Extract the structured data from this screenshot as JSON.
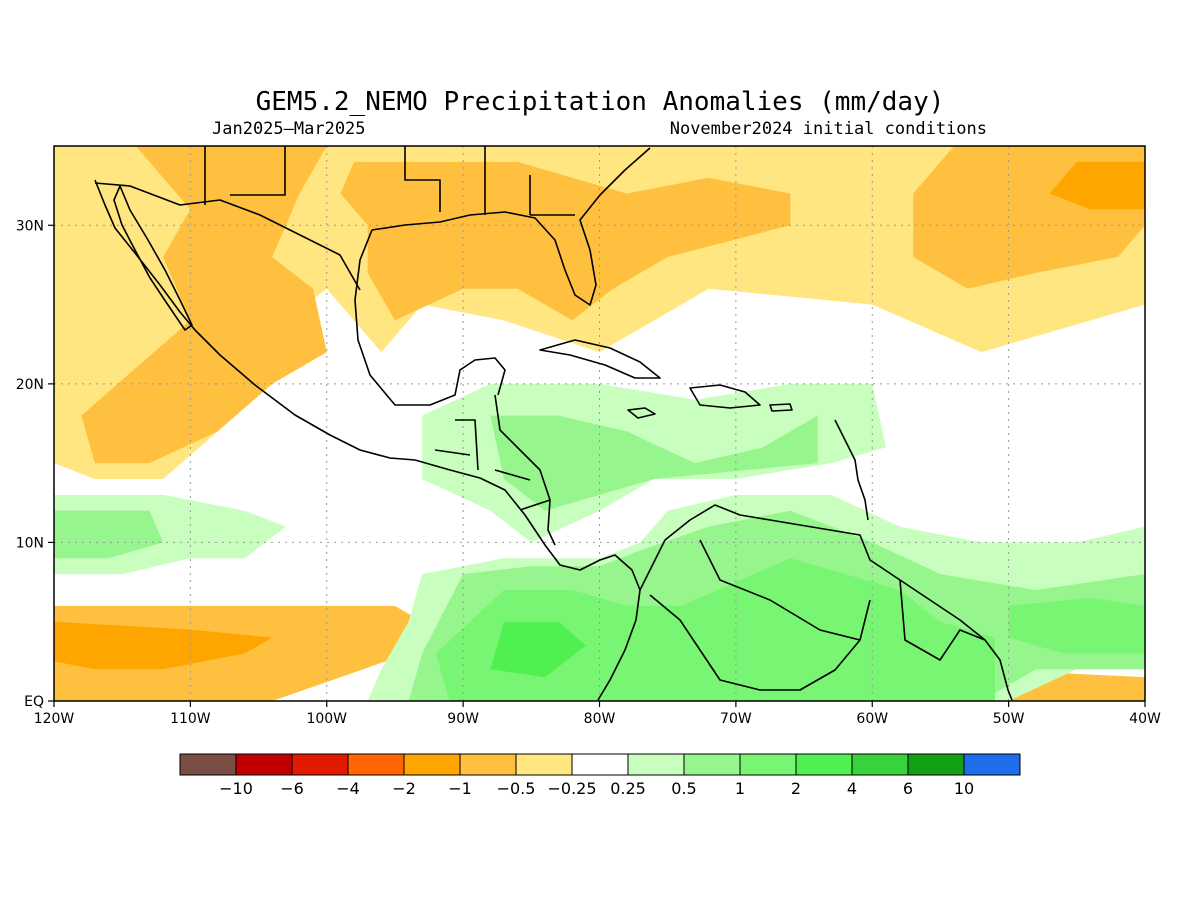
{
  "title": "GEM5.2_NEMO Precipitation Anomalies (mm/day)",
  "subtitle_left": "Jan2025–Mar2025",
  "subtitle_right": "November2024 initial conditions",
  "chart_data": {
    "type": "heatmap",
    "projection": "lat-lon",
    "lon_range": [
      -120,
      -40
    ],
    "lat_range": [
      0,
      35
    ],
    "x_ticks": [
      {
        "lon": -120,
        "label": "120W"
      },
      {
        "lon": -110,
        "label": "110W"
      },
      {
        "lon": -100,
        "label": "100W"
      },
      {
        "lon": -90,
        "label": "90W"
      },
      {
        "lon": -80,
        "label": "80W"
      },
      {
        "lon": -70,
        "label": "70W"
      },
      {
        "lon": -60,
        "label": "60W"
      },
      {
        "lon": -50,
        "label": "50W"
      },
      {
        "lon": -40,
        "label": "40W"
      }
    ],
    "y_ticks": [
      {
        "lat": 0,
        "label": "EQ"
      },
      {
        "lat": 10,
        "label": "10N"
      },
      {
        "lat": 20,
        "label": "20N"
      },
      {
        "lat": 30,
        "label": "30N"
      }
    ],
    "grid": true,
    "colorbar": {
      "colors": [
        "#7a4d45",
        "#c00000",
        "#e11a00",
        "#ff6600",
        "#ffa500",
        "#ffc040",
        "#ffe680",
        "#ffffff",
        "#c8ffbe",
        "#96f58c",
        "#78f573",
        "#50f050",
        "#37d23c",
        "#14a014",
        "#1e6eeb"
      ],
      "labels": [
        "−10",
        "−6",
        "−4",
        "−2",
        "−1",
        "−0.5",
        "−0.25",
        "0.25",
        "0.5",
        "1",
        "2",
        "4",
        "6",
        "10"
      ]
    },
    "regions": [
      {
        "bin": 6,
        "coords": [
          [
            -120,
            35
          ],
          [
            -40,
            35
          ],
          [
            -40,
            25
          ],
          [
            -52,
            22
          ],
          [
            -60,
            25
          ],
          [
            -72,
            26
          ],
          [
            -80,
            22
          ],
          [
            -87,
            24
          ],
          [
            -93,
            25
          ],
          [
            -96,
            22
          ],
          [
            -100,
            26
          ],
          [
            -103,
            24
          ],
          [
            -105,
            21
          ],
          [
            -108,
            17
          ],
          [
            -112,
            14
          ],
          [
            -117,
            14
          ],
          [
            -120,
            15
          ]
        ]
      },
      {
        "bin": 5,
        "coords": [
          [
            -114,
            35
          ],
          [
            -100,
            35
          ],
          [
            -102,
            32
          ],
          [
            -104,
            28
          ],
          [
            -101,
            26
          ],
          [
            -100,
            22
          ],
          [
            -104,
            20
          ],
          [
            -108,
            17
          ],
          [
            -113,
            15
          ],
          [
            -117,
            15
          ],
          [
            -118,
            18
          ],
          [
            -114,
            21
          ],
          [
            -110,
            24
          ],
          [
            -112,
            28
          ],
          [
            -110,
            31
          ],
          [
            -112,
            33
          ]
        ]
      },
      {
        "bin": 5,
        "coords": [
          [
            -98,
            34
          ],
          [
            -86,
            34
          ],
          [
            -78,
            32
          ],
          [
            -72,
            33
          ],
          [
            -66,
            32
          ],
          [
            -66,
            30
          ],
          [
            -75,
            28
          ],
          [
            -79,
            26
          ],
          [
            -82,
            24
          ],
          [
            -86,
            26
          ],
          [
            -90,
            26
          ],
          [
            -95,
            24
          ],
          [
            -97,
            27
          ],
          [
            -97,
            30
          ],
          [
            -99,
            32
          ]
        ]
      },
      {
        "bin": 5,
        "coords": [
          [
            -54,
            35
          ],
          [
            -40,
            35
          ],
          [
            -40,
            30
          ],
          [
            -42,
            28
          ],
          [
            -48,
            27
          ],
          [
            -53,
            26
          ],
          [
            -57,
            28
          ],
          [
            -57,
            32
          ]
        ]
      },
      {
        "bin": 4,
        "coords": [
          [
            -45,
            34
          ],
          [
            -40,
            34
          ],
          [
            -40,
            31
          ],
          [
            -44,
            31
          ],
          [
            -47,
            32
          ]
        ]
      },
      {
        "bin": 5,
        "coords": [
          [
            -120,
            6
          ],
          [
            -95,
            6
          ],
          [
            -93,
            5
          ],
          [
            -94,
            3
          ],
          [
            -99,
            1.5
          ],
          [
            -104,
            0
          ],
          [
            -120,
            0
          ]
        ]
      },
      {
        "bin": 4,
        "coords": [
          [
            -120,
            5
          ],
          [
            -110,
            4.5
          ],
          [
            -104,
            4
          ],
          [
            -106,
            3
          ],
          [
            -112,
            2
          ],
          [
            -117,
            2
          ],
          [
            -120,
            2.5
          ]
        ]
      },
      {
        "bin": 5,
        "coords": [
          [
            -52,
            2
          ],
          [
            -40,
            1.5
          ],
          [
            -40,
            0
          ],
          [
            -52,
            0
          ]
        ]
      },
      {
        "bin": 8,
        "coords": [
          [
            -120,
            13
          ],
          [
            -112,
            13
          ],
          [
            -106,
            12
          ],
          [
            -103,
            11
          ],
          [
            -106,
            9
          ],
          [
            -110,
            9
          ],
          [
            -115,
            8
          ],
          [
            -120,
            8
          ]
        ]
      },
      {
        "bin": 9,
        "coords": [
          [
            -120,
            12
          ],
          [
            -113,
            12
          ],
          [
            -112,
            10
          ],
          [
            -116,
            9
          ],
          [
            -120,
            9
          ]
        ]
      },
      {
        "bin": 8,
        "coords": [
          [
            -93,
            8
          ],
          [
            -87,
            9
          ],
          [
            -80,
            9
          ],
          [
            -77,
            10
          ],
          [
            -75,
            12
          ],
          [
            -70,
            13
          ],
          [
            -63,
            13
          ],
          [
            -58,
            11
          ],
          [
            -52,
            10
          ],
          [
            -45,
            10
          ],
          [
            -40,
            11
          ],
          [
            -40,
            2
          ],
          [
            -45,
            2
          ],
          [
            -50,
            0
          ],
          [
            -97,
            0
          ],
          [
            -96,
            2
          ],
          [
            -94,
            5
          ]
        ]
      },
      {
        "bin": 8,
        "coords": [
          [
            -93,
            18
          ],
          [
            -88,
            20
          ],
          [
            -80,
            20
          ],
          [
            -73,
            19
          ],
          [
            -66,
            20
          ],
          [
            -60,
            20
          ],
          [
            -59,
            16
          ],
          [
            -63,
            15
          ],
          [
            -70,
            14
          ],
          [
            -76,
            14
          ],
          [
            -80,
            12
          ],
          [
            -85,
            10
          ],
          [
            -88,
            12
          ],
          [
            -93,
            14
          ]
        ]
      },
      {
        "bin": 9,
        "coords": [
          [
            -90,
            8
          ],
          [
            -85,
            8.5
          ],
          [
            -80,
            8.5
          ],
          [
            -77,
            9.5
          ],
          [
            -72,
            11
          ],
          [
            -66,
            12
          ],
          [
            -60,
            10
          ],
          [
            -55,
            8
          ],
          [
            -48,
            7
          ],
          [
            -40,
            8
          ],
          [
            -40,
            2
          ],
          [
            -48,
            2
          ],
          [
            -52,
            0
          ],
          [
            -94,
            0
          ],
          [
            -93,
            3
          ]
        ]
      },
      {
        "bin": 9,
        "coords": [
          [
            -88,
            18
          ],
          [
            -83,
            18
          ],
          [
            -78,
            17
          ],
          [
            -73,
            15
          ],
          [
            -68,
            16
          ],
          [
            -64,
            18
          ],
          [
            -64,
            15
          ],
          [
            -70,
            14.5
          ],
          [
            -76,
            14
          ],
          [
            -80,
            13
          ],
          [
            -84,
            12
          ],
          [
            -87,
            14
          ]
        ]
      },
      {
        "bin": 10,
        "coords": [
          [
            -87,
            7
          ],
          [
            -82,
            7
          ],
          [
            -78,
            6
          ],
          [
            -74,
            6
          ],
          [
            -70,
            7.5
          ],
          [
            -66,
            9
          ],
          [
            -62,
            8
          ],
          [
            -58,
            7
          ],
          [
            -55,
            5
          ],
          [
            -51,
            4
          ],
          [
            -51,
            0
          ],
          [
            -91,
            0
          ],
          [
            -92,
            3
          ]
        ]
      },
      {
        "bin": 10,
        "coords": [
          [
            -50,
            6
          ],
          [
            -44,
            6.5
          ],
          [
            -40,
            6
          ],
          [
            -40,
            3
          ],
          [
            -46,
            3
          ],
          [
            -50,
            4
          ]
        ]
      },
      {
        "bin": 11,
        "coords": [
          [
            -87,
            5
          ],
          [
            -83,
            5
          ],
          [
            -81,
            3.5
          ],
          [
            -84,
            1.5
          ],
          [
            -88,
            2
          ]
        ]
      }
    ]
  }
}
